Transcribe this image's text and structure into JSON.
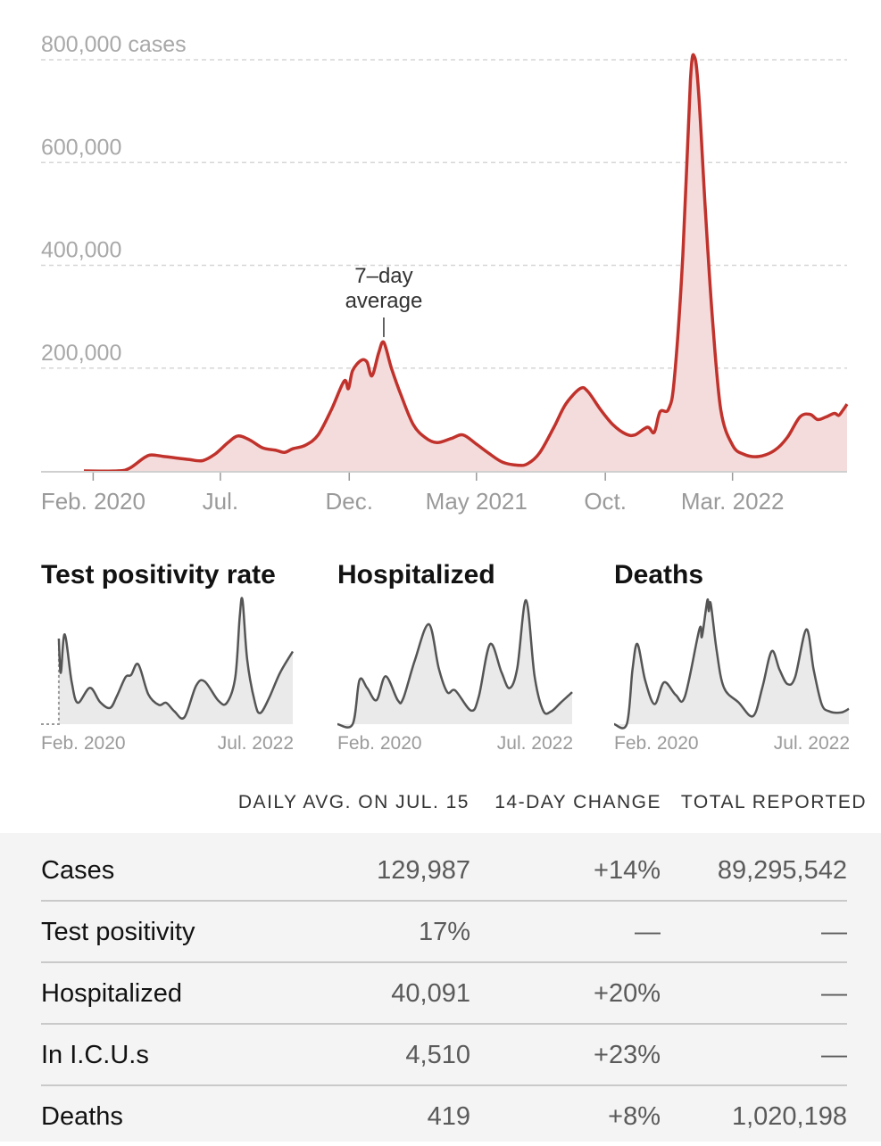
{
  "chart_data": [
    {
      "type": "area",
      "title": "",
      "ylabel": "",
      "y_unit_label": "800,000 cases",
      "yticks": [
        {
          "value": 0,
          "label": ""
        },
        {
          "value": 200000,
          "label": "200,000"
        },
        {
          "value": 400000,
          "label": "400,000"
        },
        {
          "value": 600000,
          "label": "600,000"
        },
        {
          "value": 800000,
          "label": "800,000 cases"
        }
      ],
      "ylim": [
        0,
        800000
      ],
      "xlim": [
        "2020-01-21",
        "2022-07-15"
      ],
      "xticks": [
        {
          "value": "2020-02-01",
          "label": "Feb. 2020"
        },
        {
          "value": "2020-07-01",
          "label": "Jul."
        },
        {
          "value": "2020-12-01",
          "label": "Dec."
        },
        {
          "value": "2021-05-01",
          "label": "May 2021"
        },
        {
          "value": "2021-10-01",
          "label": "Oct."
        },
        {
          "value": "2022-03-01",
          "label": "Mar. 2022"
        }
      ],
      "grid": true,
      "annotation": {
        "lines": [
          "7–day",
          "average"
        ],
        "x": "2021-01-11",
        "y": 250000
      },
      "colors": {
        "line": "#c0322b",
        "fill": "#f5dcdc"
      },
      "series": [
        {
          "name": "",
          "points": [
            {
              "x": "2020-01-21",
              "y": 0
            },
            {
              "x": "2020-03-01",
              "y": 0
            },
            {
              "x": "2020-03-15",
              "y": 5000
            },
            {
              "x": "2020-04-01",
              "y": 25000
            },
            {
              "x": "2020-04-10",
              "y": 31000
            },
            {
              "x": "2020-04-25",
              "y": 28000
            },
            {
              "x": "2020-05-10",
              "y": 25000
            },
            {
              "x": "2020-05-25",
              "y": 22000
            },
            {
              "x": "2020-06-10",
              "y": 20000
            },
            {
              "x": "2020-06-25",
              "y": 33000
            },
            {
              "x": "2020-07-10",
              "y": 55000
            },
            {
              "x": "2020-07-22",
              "y": 68000
            },
            {
              "x": "2020-08-05",
              "y": 60000
            },
            {
              "x": "2020-08-20",
              "y": 45000
            },
            {
              "x": "2020-09-05",
              "y": 40000
            },
            {
              "x": "2020-09-15",
              "y": 36000
            },
            {
              "x": "2020-09-25",
              "y": 43000
            },
            {
              "x": "2020-10-10",
              "y": 50000
            },
            {
              "x": "2020-10-25",
              "y": 70000
            },
            {
              "x": "2020-11-10",
              "y": 120000
            },
            {
              "x": "2020-11-25",
              "y": 175000
            },
            {
              "x": "2020-11-30",
              "y": 160000
            },
            {
              "x": "2020-12-05",
              "y": 195000
            },
            {
              "x": "2020-12-15",
              "y": 215000
            },
            {
              "x": "2020-12-22",
              "y": 212000
            },
            {
              "x": "2020-12-28",
              "y": 185000
            },
            {
              "x": "2021-01-05",
              "y": 230000
            },
            {
              "x": "2021-01-11",
              "y": 250000
            },
            {
              "x": "2021-01-20",
              "y": 200000
            },
            {
              "x": "2021-02-01",
              "y": 145000
            },
            {
              "x": "2021-02-15",
              "y": 90000
            },
            {
              "x": "2021-03-01",
              "y": 65000
            },
            {
              "x": "2021-03-15",
              "y": 55000
            },
            {
              "x": "2021-04-01",
              "y": 63000
            },
            {
              "x": "2021-04-15",
              "y": 70000
            },
            {
              "x": "2021-05-01",
              "y": 52000
            },
            {
              "x": "2021-05-15",
              "y": 35000
            },
            {
              "x": "2021-06-01",
              "y": 17000
            },
            {
              "x": "2021-06-20",
              "y": 11000
            },
            {
              "x": "2021-07-01",
              "y": 14000
            },
            {
              "x": "2021-07-15",
              "y": 35000
            },
            {
              "x": "2021-08-01",
              "y": 85000
            },
            {
              "x": "2021-08-15",
              "y": 130000
            },
            {
              "x": "2021-09-01",
              "y": 160000
            },
            {
              "x": "2021-09-10",
              "y": 155000
            },
            {
              "x": "2021-09-25",
              "y": 120000
            },
            {
              "x": "2021-10-10",
              "y": 90000
            },
            {
              "x": "2021-10-25",
              "y": 72000
            },
            {
              "x": "2021-11-05",
              "y": 70000
            },
            {
              "x": "2021-11-20",
              "y": 85000
            },
            {
              "x": "2021-11-28",
              "y": 75000
            },
            {
              "x": "2021-12-05",
              "y": 115000
            },
            {
              "x": "2021-12-15",
              "y": 120000
            },
            {
              "x": "2021-12-22",
              "y": 180000
            },
            {
              "x": "2022-01-01",
              "y": 420000
            },
            {
              "x": "2022-01-10",
              "y": 760000
            },
            {
              "x": "2022-01-15",
              "y": 805000
            },
            {
              "x": "2022-01-20",
              "y": 730000
            },
            {
              "x": "2022-01-28",
              "y": 500000
            },
            {
              "x": "2022-02-05",
              "y": 300000
            },
            {
              "x": "2022-02-15",
              "y": 120000
            },
            {
              "x": "2022-03-01",
              "y": 50000
            },
            {
              "x": "2022-03-15",
              "y": 32000
            },
            {
              "x": "2022-04-01",
              "y": 28000
            },
            {
              "x": "2022-04-20",
              "y": 40000
            },
            {
              "x": "2022-05-05",
              "y": 65000
            },
            {
              "x": "2022-05-20",
              "y": 105000
            },
            {
              "x": "2022-06-01",
              "y": 110000
            },
            {
              "x": "2022-06-10",
              "y": 100000
            },
            {
              "x": "2022-06-20",
              "y": 105000
            },
            {
              "x": "2022-06-30",
              "y": 112000
            },
            {
              "x": "2022-07-05",
              "y": 108000
            },
            {
              "x": "2022-07-10",
              "y": 118000
            },
            {
              "x": "2022-07-15",
              "y": 130000
            }
          ]
        }
      ]
    },
    {
      "type": "area",
      "title": "Test positivity rate",
      "xtick_labels": [
        "Feb. 2020",
        "Jul. 2022"
      ],
      "colors": {
        "line": "#555555",
        "fill": "#eaeaea"
      },
      "series": [
        {
          "name": "",
          "points": [
            {
              "x": "2020-03-25",
              "y": 0.2
            },
            {
              "x": "2020-04-01",
              "y": 0.12
            },
            {
              "x": "2020-04-15",
              "y": 0.21
            },
            {
              "x": "2020-05-10",
              "y": 0.1
            },
            {
              "x": "2020-06-01",
              "y": 0.05
            },
            {
              "x": "2020-07-15",
              "y": 0.085
            },
            {
              "x": "2020-08-20",
              "y": 0.052
            },
            {
              "x": "2020-09-25",
              "y": 0.038
            },
            {
              "x": "2020-10-20",
              "y": 0.066
            },
            {
              "x": "2020-11-20",
              "y": 0.11
            },
            {
              "x": "2020-12-10",
              "y": 0.115
            },
            {
              "x": "2021-01-05",
              "y": 0.14
            },
            {
              "x": "2021-02-10",
              "y": 0.07
            },
            {
              "x": "2021-03-20",
              "y": 0.045
            },
            {
              "x": "2021-04-15",
              "y": 0.05
            },
            {
              "x": "2021-05-15",
              "y": 0.03
            },
            {
              "x": "2021-06-20",
              "y": 0.016
            },
            {
              "x": "2021-08-01",
              "y": 0.09
            },
            {
              "x": "2021-09-01",
              "y": 0.1
            },
            {
              "x": "2021-10-20",
              "y": 0.055
            },
            {
              "x": "2021-11-20",
              "y": 0.05
            },
            {
              "x": "2021-12-20",
              "y": 0.11
            },
            {
              "x": "2022-01-05",
              "y": 0.25
            },
            {
              "x": "2022-01-15",
              "y": 0.29
            },
            {
              "x": "2022-02-01",
              "y": 0.15
            },
            {
              "x": "2022-03-01",
              "y": 0.05
            },
            {
              "x": "2022-03-20",
              "y": 0.026
            },
            {
              "x": "2022-04-20",
              "y": 0.06
            },
            {
              "x": "2022-05-30",
              "y": 0.12
            },
            {
              "x": "2022-07-15",
              "y": 0.17
            }
          ]
        }
      ]
    },
    {
      "type": "area",
      "title": "Hospitalized",
      "xtick_labels": [
        "Feb. 2020",
        "Jul. 2022"
      ],
      "colors": {
        "line": "#555555",
        "fill": "#eaeaea"
      },
      "series": [
        {
          "name": "",
          "points": [
            {
              "x": "2020-01-21",
              "y": 0
            },
            {
              "x": "2020-03-20",
              "y": 0
            },
            {
              "x": "2020-04-15",
              "y": 55000
            },
            {
              "x": "2020-05-15",
              "y": 45000
            },
            {
              "x": "2020-06-20",
              "y": 30000
            },
            {
              "x": "2020-07-25",
              "y": 60000
            },
            {
              "x": "2020-09-10",
              "y": 30000
            },
            {
              "x": "2020-10-01",
              "y": 32000
            },
            {
              "x": "2020-11-15",
              "y": 80000
            },
            {
              "x": "2021-01-08",
              "y": 125000
            },
            {
              "x": "2021-02-15",
              "y": 70000
            },
            {
              "x": "2021-03-20",
              "y": 40000
            },
            {
              "x": "2021-04-20",
              "y": 42000
            },
            {
              "x": "2021-06-20",
              "y": 17000
            },
            {
              "x": "2021-07-20",
              "y": 35000
            },
            {
              "x": "2021-09-01",
              "y": 100000
            },
            {
              "x": "2021-10-15",
              "y": 65000
            },
            {
              "x": "2021-11-15",
              "y": 45000
            },
            {
              "x": "2021-12-15",
              "y": 70000
            },
            {
              "x": "2022-01-18",
              "y": 155000
            },
            {
              "x": "2022-02-20",
              "y": 60000
            },
            {
              "x": "2022-03-25",
              "y": 17000
            },
            {
              "x": "2022-04-25",
              "y": 16000
            },
            {
              "x": "2022-06-01",
              "y": 27000
            },
            {
              "x": "2022-07-15",
              "y": 40000
            }
          ]
        }
      ]
    },
    {
      "type": "area",
      "title": "Deaths",
      "xtick_labels": [
        "Feb. 2020",
        "Jul. 2022"
      ],
      "colors": {
        "line": "#555555",
        "fill": "#eaeaea"
      },
      "series": [
        {
          "name": "",
          "points": [
            {
              "x": "2020-01-21",
              "y": 0
            },
            {
              "x": "2020-03-10",
              "y": 0
            },
            {
              "x": "2020-04-01",
              "y": 1500
            },
            {
              "x": "2020-04-20",
              "y": 2200
            },
            {
              "x": "2020-05-20",
              "y": 1200
            },
            {
              "x": "2020-06-25",
              "y": 550
            },
            {
              "x": "2020-08-01",
              "y": 1150
            },
            {
              "x": "2020-09-15",
              "y": 800
            },
            {
              "x": "2020-10-20",
              "y": 750
            },
            {
              "x": "2020-12-15",
              "y": 2600
            },
            {
              "x": "2020-12-25",
              "y": 2400
            },
            {
              "x": "2021-01-15",
              "y": 3400
            },
            {
              "x": "2021-01-20",
              "y": 3100
            },
            {
              "x": "2021-01-28",
              "y": 3300
            },
            {
              "x": "2021-02-20",
              "y": 2000
            },
            {
              "x": "2021-03-20",
              "y": 1000
            },
            {
              "x": "2021-05-15",
              "y": 600
            },
            {
              "x": "2021-07-10",
              "y": 220
            },
            {
              "x": "2021-08-15",
              "y": 1000
            },
            {
              "x": "2021-09-20",
              "y": 2000
            },
            {
              "x": "2021-10-20",
              "y": 1500
            },
            {
              "x": "2021-11-20",
              "y": 1100
            },
            {
              "x": "2021-12-20",
              "y": 1300
            },
            {
              "x": "2022-02-01",
              "y": 2600
            },
            {
              "x": "2022-03-01",
              "y": 1500
            },
            {
              "x": "2022-04-01",
              "y": 550
            },
            {
              "x": "2022-05-01",
              "y": 350
            },
            {
              "x": "2022-06-15",
              "y": 320
            },
            {
              "x": "2022-07-15",
              "y": 420
            }
          ]
        }
      ]
    }
  ],
  "table": {
    "columns": [
      "DAILY AVG. ON JUL. 15",
      "14-DAY CHANGE",
      "TOTAL REPORTED"
    ],
    "rows": [
      {
        "label": "Cases",
        "avg": "129,987",
        "change": "+14%",
        "total": "89,295,542"
      },
      {
        "label": "Test positivity",
        "avg": "17%",
        "change": "—",
        "total": "—"
      },
      {
        "label": "Hospitalized",
        "avg": "40,091",
        "change": "+20%",
        "total": "—"
      },
      {
        "label": "In I.C.U.s",
        "avg": "4,510",
        "change": "+23%",
        "total": "—"
      },
      {
        "label": "Deaths",
        "avg": "419",
        "change": "+8%",
        "total": "1,020,198"
      }
    ]
  }
}
